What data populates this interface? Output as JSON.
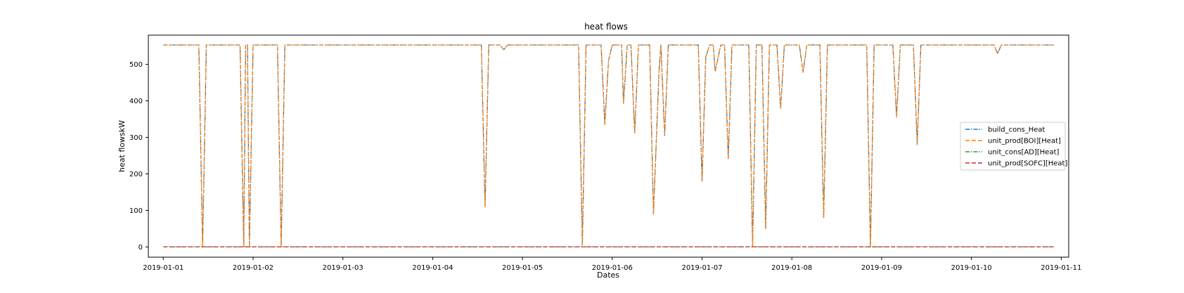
{
  "chart_data": {
    "type": "line",
    "title": "heat flows",
    "xlabel": "Dates",
    "ylabel": "heat flowskW",
    "x_ticks": [
      "2019-01-01",
      "2019-01-02",
      "2019-01-03",
      "2019-01-04",
      "2019-01-05",
      "2019-01-06",
      "2019-01-07",
      "2019-01-08",
      "2019-01-09",
      "2019-01-10",
      "2019-01-11"
    ],
    "y_ticks": [
      0,
      100,
      200,
      300,
      400,
      500
    ],
    "xlim": [
      "2018-12-31 20:00",
      "2019-01-11 02:00"
    ],
    "ylim": [
      -28,
      580
    ],
    "grid": false,
    "legend_position": "right",
    "series": [
      {
        "name": "build_cons_Heat",
        "color": "#1f77b4",
        "style": "dashdot",
        "points": [
          [
            "2019-01-01 00:00",
            553
          ],
          [
            "2019-01-01 09:30",
            553
          ],
          [
            "2019-01-01 10:30",
            0
          ],
          [
            "2019-01-01 11:30",
            553
          ],
          [
            "2019-01-01 20:30",
            553
          ],
          [
            "2019-01-01 21:30",
            0
          ],
          [
            "2019-01-01 22:00",
            553
          ],
          [
            "2019-01-01 22:30",
            553
          ],
          [
            "2019-01-01 23:00",
            0
          ],
          [
            "2019-01-02 00:00",
            553
          ],
          [
            "2019-01-02 06:30",
            553
          ],
          [
            "2019-01-02 07:30",
            0
          ],
          [
            "2019-01-02 08:30",
            553
          ],
          [
            "2019-01-04 13:00",
            553
          ],
          [
            "2019-01-04 14:00",
            110
          ],
          [
            "2019-01-04 15:00",
            553
          ],
          [
            "2019-01-04 18:00",
            553
          ],
          [
            "2019-01-04 19:00",
            540
          ],
          [
            "2019-01-04 20:00",
            553
          ],
          [
            "2019-01-05 15:00",
            553
          ],
          [
            "2019-01-05 16:00",
            5
          ],
          [
            "2019-01-05 17:00",
            553
          ],
          [
            "2019-01-05 21:00",
            553
          ],
          [
            "2019-01-05 22:00",
            335
          ],
          [
            "2019-01-05 23:00",
            510
          ],
          [
            "2019-01-06 00:00",
            553
          ],
          [
            "2019-01-06 02:30",
            553
          ],
          [
            "2019-01-06 03:00",
            393
          ],
          [
            "2019-01-06 04:00",
            553
          ],
          [
            "2019-01-06 05:00",
            553
          ],
          [
            "2019-01-06 06:00",
            312
          ],
          [
            "2019-01-06 07:00",
            553
          ],
          [
            "2019-01-06 10:00",
            553
          ],
          [
            "2019-01-06 11:00",
            90
          ],
          [
            "2019-01-06 12:30",
            480
          ],
          [
            "2019-01-06 13:00",
            553
          ],
          [
            "2019-01-06 14:00",
            305
          ],
          [
            "2019-01-06 15:00",
            553
          ],
          [
            "2019-01-06 23:00",
            553
          ],
          [
            "2019-01-07 00:00",
            180
          ],
          [
            "2019-01-07 01:00",
            520
          ],
          [
            "2019-01-07 02:00",
            553
          ],
          [
            "2019-01-07 03:00",
            553
          ],
          [
            "2019-01-07 03:30",
            480
          ],
          [
            "2019-01-07 05:00",
            553
          ],
          [
            "2019-01-07 06:00",
            553
          ],
          [
            "2019-01-07 07:00",
            240
          ],
          [
            "2019-01-07 08:00",
            553
          ],
          [
            "2019-01-07 12:30",
            553
          ],
          [
            "2019-01-07 13:30",
            0
          ],
          [
            "2019-01-07 14:30",
            553
          ],
          [
            "2019-01-07 16:00",
            553
          ],
          [
            "2019-01-07 17:00",
            50
          ],
          [
            "2019-01-07 18:00",
            553
          ],
          [
            "2019-01-07 20:00",
            553
          ],
          [
            "2019-01-07 21:00",
            380
          ],
          [
            "2019-01-07 22:00",
            553
          ],
          [
            "2019-01-08 02:00",
            553
          ],
          [
            "2019-01-08 03:00",
            478
          ],
          [
            "2019-01-08 04:00",
            553
          ],
          [
            "2019-01-08 07:30",
            553
          ],
          [
            "2019-01-08 08:30",
            80
          ],
          [
            "2019-01-08 09:30",
            553
          ],
          [
            "2019-01-08 20:00",
            553
          ],
          [
            "2019-01-08 21:00",
            0
          ],
          [
            "2019-01-08 22:00",
            553
          ],
          [
            "2019-01-09 03:00",
            553
          ],
          [
            "2019-01-09 04:00",
            355
          ],
          [
            "2019-01-09 05:00",
            553
          ],
          [
            "2019-01-09 08:30",
            553
          ],
          [
            "2019-01-09 09:30",
            280
          ],
          [
            "2019-01-09 10:30",
            553
          ],
          [
            "2019-01-10 06:00",
            553
          ],
          [
            "2019-01-10 07:00",
            530
          ],
          [
            "2019-01-10 08:00",
            553
          ],
          [
            "2019-01-10 22:00",
            553
          ]
        ]
      },
      {
        "name": "unit_prod[BOI][Heat]",
        "color": "#ff7f0e",
        "style": "dashed",
        "points": "same as build_cons_Heat"
      },
      {
        "name": "unit_cons[AD][Heat]",
        "color": "#2ca02c",
        "style": "dashdot",
        "points": [
          [
            "2019-01-01 00:00",
            0
          ],
          [
            "2019-01-10 22:00",
            0
          ]
        ]
      },
      {
        "name": "unit_prod[SOFC][Heat]",
        "color": "#d62728",
        "style": "dashed",
        "points": [
          [
            "2019-01-01 00:00",
            0
          ],
          [
            "2019-01-10 22:00",
            0
          ]
        ]
      }
    ]
  }
}
